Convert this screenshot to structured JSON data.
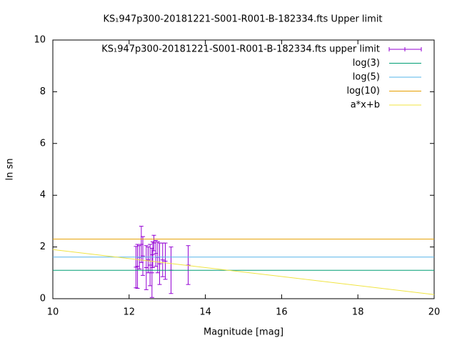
{
  "chart_data": {
    "type": "errorbar",
    "title": "KS₁947p300-20181221-S001-R001-B-182334.fts Upper limit",
    "x_label": "Magnitude [mag]",
    "y_label": "ln sn",
    "xlim": [
      10,
      20
    ],
    "ylim": [
      0,
      10
    ],
    "xticks": [
      10,
      12,
      14,
      16,
      18,
      20
    ],
    "yticks": [
      0,
      2,
      4,
      6,
      8,
      10
    ],
    "legend": "top-right",
    "series": [
      {
        "name": "KS₁947p300-20181221-S001-R001-B-182334.fts upper limit",
        "color": "#9400d3",
        "style": "errorbar",
        "x": [
          12.18,
          12.22,
          12.27,
          12.32,
          12.36,
          12.45,
          12.5,
          12.55,
          12.6,
          12.62,
          12.65,
          12.7,
          12.75,
          12.8,
          12.88,
          12.95,
          13.1,
          13.55
        ],
        "values": [
          1.22,
          1.25,
          1.6,
          2.1,
          1.65,
          1.2,
          1.5,
          1.3,
          1.0,
          1.7,
          2.15,
          1.75,
          1.6,
          1.35,
          1.5,
          1.45,
          1.1,
          1.3
        ],
        "errors": [
          0.8,
          0.85,
          0.45,
          0.7,
          0.75,
          0.85,
          0.5,
          0.8,
          0.95,
          0.5,
          0.3,
          0.5,
          0.6,
          0.8,
          0.65,
          0.7,
          0.9,
          0.75
        ]
      },
      {
        "name": "log(3)",
        "color": "#009e73",
        "style": "line",
        "x": [
          10,
          20
        ],
        "values": [
          1.0986,
          1.0986
        ]
      },
      {
        "name": "log(5)",
        "color": "#56b4e9",
        "style": "line",
        "x": [
          10,
          20
        ],
        "values": [
          1.6094,
          1.6094
        ]
      },
      {
        "name": "log(10)",
        "color": "#e69f00",
        "style": "line",
        "x": [
          10,
          20
        ],
        "values": [
          2.3026,
          2.3026
        ]
      },
      {
        "name": "a*x+b",
        "color": "#f0e442",
        "style": "line",
        "x": [
          10,
          20
        ],
        "values": [
          1.9,
          0.16
        ]
      }
    ]
  }
}
